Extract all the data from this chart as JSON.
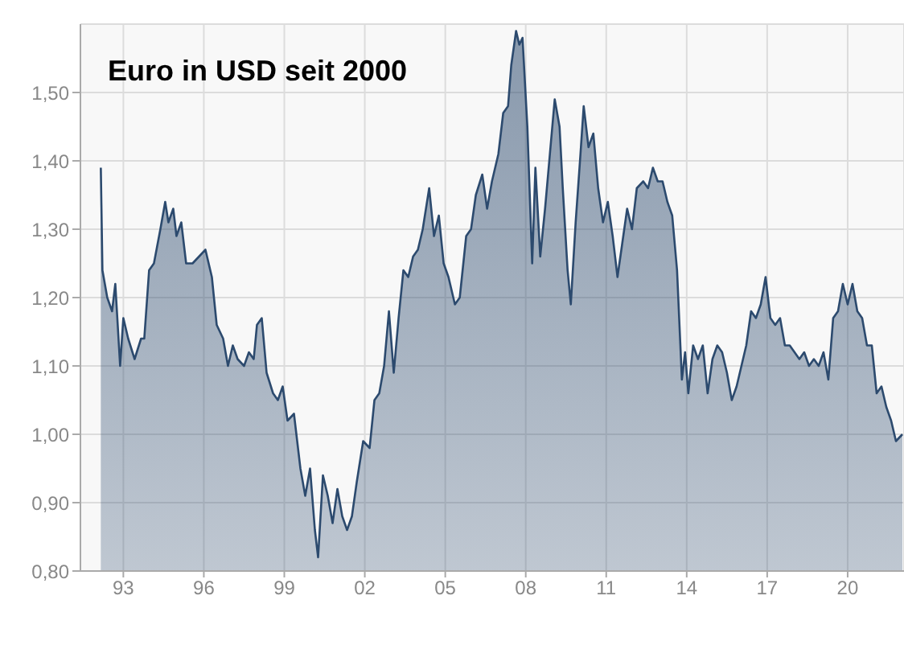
{
  "chart_data": {
    "type": "area",
    "title": "Euro in USD seit 2000",
    "x": [
      1992.16,
      1992.22,
      1992.4,
      1992.58,
      1992.7,
      1992.88,
      1993,
      1993.18,
      1993.42,
      1993.66,
      1993.78,
      1993.96,
      1994.14,
      1994.38,
      1994.56,
      1994.68,
      1994.86,
      1994.98,
      1995.16,
      1995.34,
      1995.58,
      1995.82,
      1996.06,
      1996.3,
      1996.48,
      1996.72,
      1996.9,
      1997.08,
      1997.26,
      1997.5,
      1997.68,
      1997.86,
      1997.98,
      1998.16,
      1998.34,
      1998.58,
      1998.76,
      1998.94,
      1999.12,
      1999.36,
      1999.6,
      1999.78,
      1999.96,
      2000.14,
      2000.26,
      2000.44,
      2000.62,
      2000.8,
      2000.98,
      2001.16,
      2001.34,
      2001.52,
      2001.7,
      2001.94,
      2002.18,
      2002.36,
      2002.54,
      2002.72,
      2002.9,
      2003.08,
      2003.26,
      2003.44,
      2003.62,
      2003.8,
      2003.98,
      2004.16,
      2004.4,
      2004.58,
      2004.76,
      2004.94,
      2005.12,
      2005.36,
      2005.54,
      2005.78,
      2005.96,
      2006.14,
      2006.38,
      2006.56,
      2006.74,
      2006.98,
      2007.16,
      2007.34,
      2007.46,
      2007.64,
      2007.76,
      2007.88,
      2008.06,
      2008.24,
      2008.36,
      2008.54,
      2008.72,
      2008.9,
      2009.08,
      2009.26,
      2009.38,
      2009.56,
      2009.68,
      2009.86,
      2010.04,
      2010.16,
      2010.34,
      2010.52,
      2010.7,
      2010.88,
      2011.06,
      2011.24,
      2011.42,
      2011.6,
      2011.78,
      2011.96,
      2012.14,
      2012.38,
      2012.56,
      2012.74,
      2012.92,
      2013.1,
      2013.28,
      2013.46,
      2013.64,
      2013.82,
      2013.94,
      2014.06,
      2014.24,
      2014.42,
      2014.6,
      2014.78,
      2014.96,
      2015.14,
      2015.32,
      2015.5,
      2015.68,
      2015.86,
      2016.04,
      2016.22,
      2016.4,
      2016.58,
      2016.76,
      2016.94,
      2017.12,
      2017.3,
      2017.48,
      2017.66,
      2017.84,
      2018.02,
      2018.2,
      2018.38,
      2018.56,
      2018.74,
      2018.92,
      2019.1,
      2019.28,
      2019.46,
      2019.64,
      2019.82,
      2020,
      2020.18,
      2020.36,
      2020.54,
      2020.72,
      2020.9,
      2021.08,
      2021.26,
      2021.44,
      2021.62,
      2021.8,
      2022.04
    ],
    "series": [
      {
        "color": "#2c4a6e",
        "values": [
          1.39,
          1.24,
          1.2,
          1.18,
          1.22,
          1.1,
          1.17,
          1.14,
          1.11,
          1.14,
          1.14,
          1.24,
          1.25,
          1.3,
          1.34,
          1.31,
          1.33,
          1.29,
          1.31,
          1.25,
          1.25,
          1.26,
          1.27,
          1.23,
          1.16,
          1.14,
          1.1,
          1.13,
          1.11,
          1.1,
          1.12,
          1.11,
          1.16,
          1.17,
          1.09,
          1.06,
          1.05,
          1.07,
          1.02,
          1.03,
          0.95,
          0.91,
          0.95,
          0.86,
          0.82,
          0.94,
          0.91,
          0.87,
          0.92,
          0.88,
          0.86,
          0.88,
          0.93,
          0.99,
          0.98,
          1.05,
          1.06,
          1.1,
          1.18,
          1.09,
          1.17,
          1.24,
          1.23,
          1.26,
          1.27,
          1.3,
          1.36,
          1.29,
          1.32,
          1.25,
          1.23,
          1.19,
          1.2,
          1.29,
          1.3,
          1.35,
          1.38,
          1.33,
          1.37,
          1.41,
          1.47,
          1.48,
          1.54,
          1.59,
          1.57,
          1.58,
          1.45,
          1.25,
          1.39,
          1.26,
          1.33,
          1.41,
          1.49,
          1.45,
          1.36,
          1.24,
          1.19,
          1.31,
          1.41,
          1.48,
          1.42,
          1.44,
          1.36,
          1.31,
          1.34,
          1.29,
          1.23,
          1.28,
          1.33,
          1.3,
          1.36,
          1.37,
          1.36,
          1.39,
          1.37,
          1.37,
          1.34,
          1.32,
          1.24,
          1.08,
          1.12,
          1.06,
          1.13,
          1.11,
          1.13,
          1.06,
          1.11,
          1.13,
          1.12,
          1.09,
          1.05,
          1.07,
          1.1,
          1.13,
          1.18,
          1.17,
          1.19,
          1.23,
          1.17,
          1.16,
          1.17,
          1.13,
          1.13,
          1.12,
          1.11,
          1.12,
          1.1,
          1.11,
          1.1,
          1.12,
          1.08,
          1.17,
          1.18,
          1.22,
          1.19,
          1.22,
          1.18,
          1.17,
          1.13,
          1.13,
          1.06,
          1.07,
          1.04,
          1.02,
          0.99,
          1.0
        ]
      }
    ],
    "xlim": [
      1991.4,
      2022.1
    ],
    "xticks": [
      {
        "value": 1993,
        "label": "93"
      },
      {
        "value": 1996,
        "label": "96"
      },
      {
        "value": 1999,
        "label": "99"
      },
      {
        "value": 2002,
        "label": "02"
      },
      {
        "value": 2005,
        "label": "05"
      },
      {
        "value": 2008,
        "label": "08"
      },
      {
        "value": 2011,
        "label": "11"
      },
      {
        "value": 2014,
        "label": "14"
      },
      {
        "value": 2017,
        "label": "17"
      },
      {
        "value": 2020,
        "label": "20"
      }
    ],
    "ylim": [
      0.8,
      1.6
    ],
    "yticks": [
      {
        "value": 0.8,
        "label": "0,80"
      },
      {
        "value": 0.9,
        "label": "0,90"
      },
      {
        "value": 1.0,
        "label": "1,00"
      },
      {
        "value": 1.1,
        "label": "1,10"
      },
      {
        "value": 1.2,
        "label": "1,20"
      },
      {
        "value": 1.3,
        "label": "1,30"
      },
      {
        "value": 1.4,
        "label": "1,40"
      },
      {
        "value": 1.5,
        "label": "1,50"
      }
    ],
    "grid": true
  }
}
